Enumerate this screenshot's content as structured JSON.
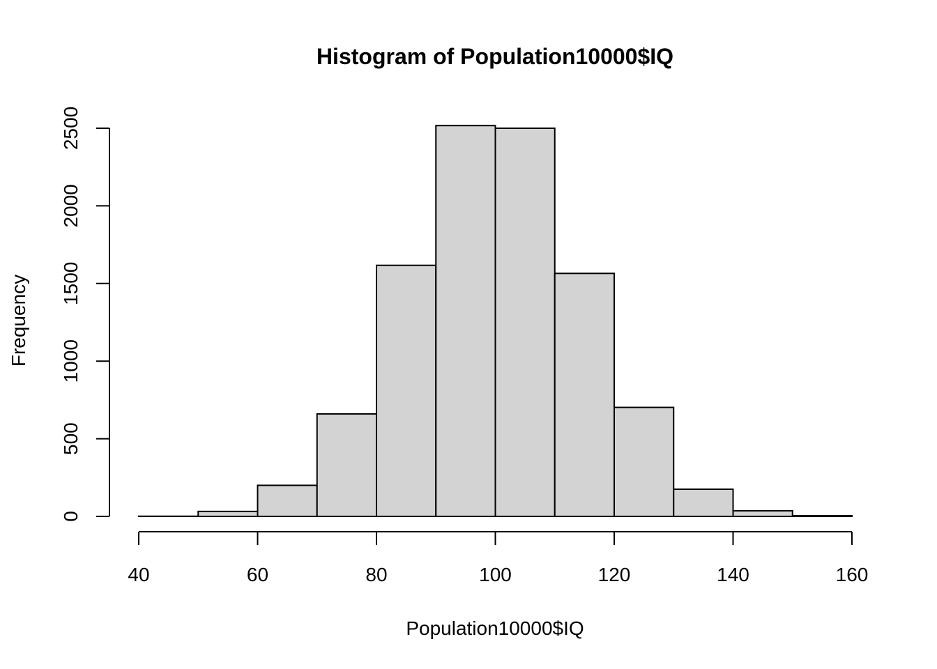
{
  "chart_data": {
    "type": "bar",
    "subtype": "histogram",
    "title": "Histogram of Population10000$IQ",
    "xlabel": "Population10000$IQ",
    "ylabel": "Frequency",
    "bins": [
      {
        "from": 40,
        "to": 50,
        "count": 1
      },
      {
        "from": 50,
        "to": 60,
        "count": 32
      },
      {
        "from": 60,
        "to": 70,
        "count": 200
      },
      {
        "from": 70,
        "to": 80,
        "count": 660
      },
      {
        "from": 80,
        "to": 90,
        "count": 1617
      },
      {
        "from": 90,
        "to": 100,
        "count": 2517
      },
      {
        "from": 100,
        "to": 110,
        "count": 2500
      },
      {
        "from": 110,
        "to": 120,
        "count": 1565
      },
      {
        "from": 120,
        "to": 130,
        "count": 702
      },
      {
        "from": 130,
        "to": 140,
        "count": 175
      },
      {
        "from": 140,
        "to": 150,
        "count": 36
      },
      {
        "from": 150,
        "to": 160,
        "count": 4
      }
    ],
    "xlim": [
      40,
      160
    ],
    "ylim": [
      0,
      2500
    ],
    "x_ticks": [
      40,
      60,
      80,
      100,
      120,
      140,
      160
    ],
    "y_ticks": [
      0,
      500,
      1000,
      1500,
      2000,
      2500
    ],
    "bar_fill": "#d3d3d3",
    "bar_edge": "#000000",
    "grid": false,
    "legend": "none"
  }
}
